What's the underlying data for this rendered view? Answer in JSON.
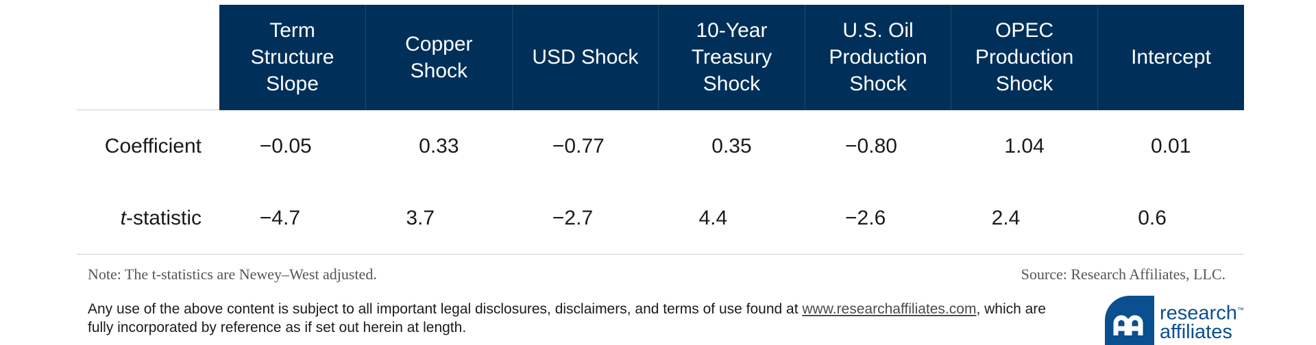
{
  "table": {
    "headers": [
      [
        "Term",
        "Structure",
        "Slope"
      ],
      [
        "Copper",
        "Shock"
      ],
      [
        "USD Shock"
      ],
      [
        "10-Year",
        "Treasury",
        "Shock"
      ],
      [
        "U.S. Oil",
        "Production",
        "Shock"
      ],
      [
        "OPEC",
        "Production",
        "Shock"
      ],
      [
        "Intercept"
      ]
    ],
    "rows": [
      {
        "label": "Coefficient",
        "values": [
          "−0.05",
          "0.33",
          "−0.77",
          "0.35",
          "−0.80",
          "1.04",
          "0.01"
        ]
      },
      {
        "label_italic": "t",
        "label_rest": "-statistic",
        "values": [
          "−4.7",
          "3.7",
          "−2.7",
          "4.4",
          "−2.6",
          "2.4",
          "0.6"
        ]
      }
    ]
  },
  "footer": {
    "note": "Note: The t-statistics are Newey–West adjusted.",
    "source": "Source: Research Affiliates, LLC.",
    "disclaimer_before": "Any use of the above content is subject to all important legal disclosures, disclaimers, and terms of use found at ",
    "disclaimer_link": "www.researchaffiliates.com",
    "disclaimer_after": ", which are fully incorporated by reference as if set out herein at length."
  },
  "logo": {
    "line1": "research",
    "tm": "™",
    "line2": "affiliates",
    "color": "#0a4f8f"
  },
  "colors": {
    "header_bg": "#00305a",
    "header_text": "#ffffff"
  }
}
